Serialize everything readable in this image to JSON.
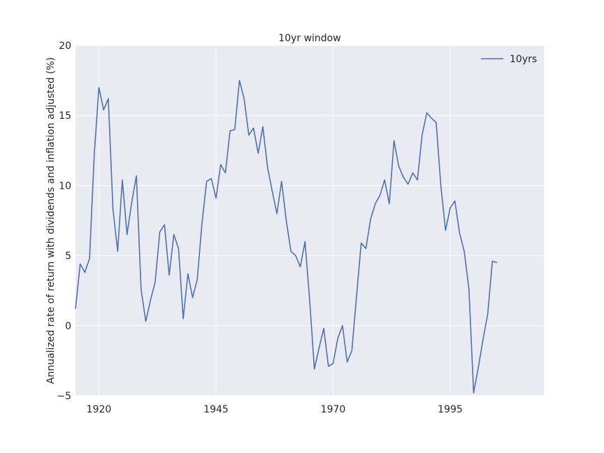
{
  "chart_data": {
    "type": "line",
    "title": "10yr window",
    "xlabel": "",
    "ylabel": "Annualized rate of return with dividends and inflation adjusted (%)",
    "xlim": [
      1915,
      2015
    ],
    "ylim": [
      -5,
      20
    ],
    "xticks": [
      1920,
      1945,
      1970,
      1995
    ],
    "yticks": [
      -5,
      0,
      5,
      10,
      15,
      20
    ],
    "grid": true,
    "legend_position": "top-right",
    "colors": {
      "plot_background": "#EAEAF2",
      "line": "#4C72B0",
      "grid": "#FFFFFF"
    },
    "series": [
      {
        "name": "10yrs",
        "x": [
          1915,
          1916,
          1917,
          1918,
          1919,
          1920,
          1921,
          1922,
          1923,
          1924,
          1925,
          1926,
          1927,
          1928,
          1929,
          1930,
          1931,
          1932,
          1933,
          1934,
          1935,
          1936,
          1937,
          1938,
          1939,
          1940,
          1941,
          1942,
          1943,
          1944,
          1945,
          1946,
          1947,
          1948,
          1949,
          1950,
          1951,
          1952,
          1953,
          1954,
          1955,
          1956,
          1957,
          1958,
          1959,
          1960,
          1961,
          1962,
          1963,
          1964,
          1965,
          1966,
          1967,
          1968,
          1969,
          1970,
          1971,
          1972,
          1973,
          1974,
          1975,
          1976,
          1977,
          1978,
          1979,
          1980,
          1981,
          1982,
          1983,
          1984,
          1985,
          1986,
          1987,
          1988,
          1989,
          1990,
          1991,
          1992,
          1993,
          1994,
          1995,
          1996,
          1997,
          1998,
          1999,
          2000,
          2001,
          2002,
          2003,
          2004,
          2005
        ],
        "y": [
          1.2,
          4.4,
          3.8,
          4.8,
          12.2,
          17.0,
          15.4,
          16.2,
          8.3,
          5.3,
          10.4,
          6.5,
          8.8,
          10.7,
          2.6,
          0.3,
          1.8,
          3.1,
          6.7,
          7.2,
          3.6,
          6.5,
          5.5,
          0.5,
          3.7,
          2.0,
          3.3,
          7.3,
          10.3,
          10.5,
          9.1,
          11.5,
          10.9,
          13.9,
          14.0,
          17.5,
          16.2,
          13.6,
          14.1,
          12.3,
          14.2,
          11.3,
          9.6,
          8.0,
          10.3,
          7.5,
          5.3,
          5.0,
          4.2,
          6.0,
          1.8,
          -3.1,
          -1.6,
          -0.2,
          -2.9,
          -2.7,
          -0.9,
          0.0,
          -2.6,
          -1.8,
          2.1,
          5.9,
          5.5,
          7.6,
          8.7,
          9.3,
          10.4,
          8.7,
          13.2,
          11.4,
          10.6,
          10.1,
          10.9,
          10.4,
          13.6,
          15.2,
          14.8,
          14.5,
          10.0,
          6.8,
          8.4,
          8.9,
          6.6,
          5.3,
          2.6,
          -4.8,
          -3.0,
          -1.0,
          0.8,
          4.6,
          4.5
        ]
      }
    ]
  }
}
